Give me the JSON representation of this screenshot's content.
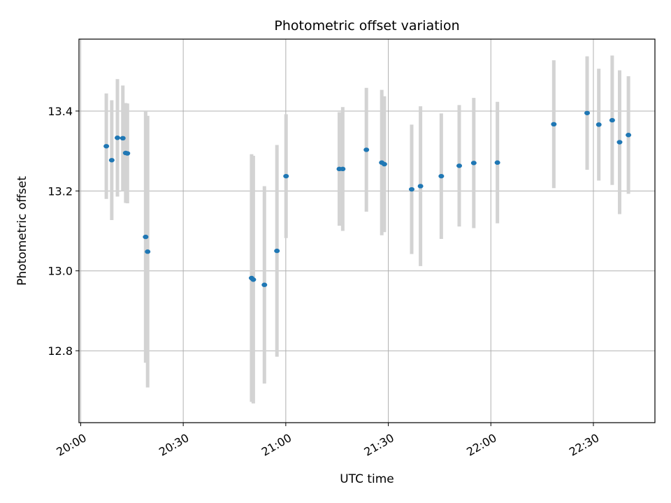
{
  "chart_data": {
    "type": "scatter",
    "title": "Photometric offset variation",
    "xlabel": "UTC time",
    "ylabel": "Photometric offset",
    "x_ticks": [
      "20:00",
      "20:30",
      "21:00",
      "21:30",
      "22:00",
      "22:30"
    ],
    "x_tick_values": [
      "20:00",
      "20:30",
      "21:00",
      "21:30",
      "22:00",
      "22:30"
    ],
    "y_ticks": [
      "12.8",
      "13.0",
      "13.2",
      "13.4"
    ],
    "y_tick_values": [
      12.8,
      13.0,
      13.2,
      13.4
    ],
    "xlim": [
      "20:00",
      "22:48"
    ],
    "ylim": [
      12.62,
      13.58
    ],
    "grid": true,
    "marker_color": "#1f77b4",
    "errorbar_color": "#d3d3d3",
    "points": [
      {
        "time": "20:07:30",
        "y": 13.312,
        "err": 0.132
      },
      {
        "time": "20:09:05",
        "y": 13.277,
        "err": 0.15
      },
      {
        "time": "20:10:45",
        "y": 13.333,
        "err": 0.147
      },
      {
        "time": "20:12:20",
        "y": 13.332,
        "err": 0.132
      },
      {
        "time": "20:13:10",
        "y": 13.295,
        "err": 0.125
      },
      {
        "time": "20:13:40",
        "y": 13.294,
        "err": 0.125
      },
      {
        "time": "20:19:00",
        "y": 13.085,
        "err": 0.315
      },
      {
        "time": "20:19:35",
        "y": 13.048,
        "err": 0.34
      },
      {
        "time": "20:50:00",
        "y": 12.982,
        "err": 0.31
      },
      {
        "time": "20:50:30",
        "y": 12.978,
        "err": 0.31
      },
      {
        "time": "20:53:45",
        "y": 12.965,
        "err": 0.247
      },
      {
        "time": "20:57:25",
        "y": 13.05,
        "err": 0.265
      },
      {
        "time": "21:00:05",
        "y": 13.237,
        "err": 0.155
      },
      {
        "time": "21:15:40",
        "y": 13.255,
        "err": 0.142
      },
      {
        "time": "21:16:40",
        "y": 13.255,
        "err": 0.155
      },
      {
        "time": "21:23:35",
        "y": 13.303,
        "err": 0.155
      },
      {
        "time": "21:28:05",
        "y": 13.271,
        "err": 0.182
      },
      {
        "time": "21:28:50",
        "y": 13.267,
        "err": 0.17
      },
      {
        "time": "21:36:50",
        "y": 13.204,
        "err": 0.162
      },
      {
        "time": "21:39:25",
        "y": 13.212,
        "err": 0.2
      },
      {
        "time": "21:45:30",
        "y": 13.237,
        "err": 0.157
      },
      {
        "time": "21:50:45",
        "y": 13.263,
        "err": 0.152
      },
      {
        "time": "21:55:00",
        "y": 13.27,
        "err": 0.163
      },
      {
        "time": "22:01:55",
        "y": 13.271,
        "err": 0.152
      },
      {
        "time": "22:18:25",
        "y": 13.367,
        "err": 0.16
      },
      {
        "time": "22:28:10",
        "y": 13.395,
        "err": 0.142
      },
      {
        "time": "22:31:35",
        "y": 13.366,
        "err": 0.14
      },
      {
        "time": "22:35:30",
        "y": 13.377,
        "err": 0.162
      },
      {
        "time": "22:37:40",
        "y": 13.322,
        "err": 0.18
      },
      {
        "time": "22:40:15",
        "y": 13.34,
        "err": 0.147
      }
    ]
  }
}
